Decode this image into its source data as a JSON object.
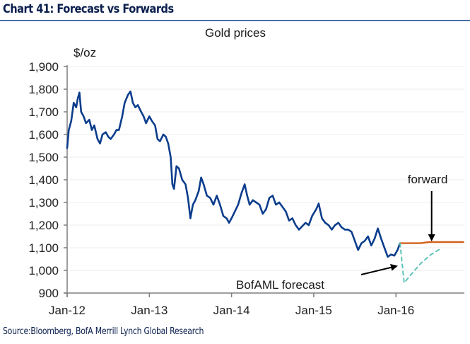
{
  "header": {
    "title": "Chart 41: Forecast vs Forwards"
  },
  "footer": {
    "source": "Source:Bloomberg, BofA Merrill Lynch Global Research"
  },
  "colors": {
    "gold_series": "#0b3d8c",
    "forward_series": "#d2601a",
    "forecast_series": "#5fc4b8",
    "axis": "#7f7f7f",
    "grid": "#ececec",
    "title": "#0a1f4e",
    "rule": "#4a6fa5"
  },
  "chart_data": {
    "type": "line",
    "title": "Gold prices",
    "ylabel": "$/oz",
    "xlabel": "",
    "ylim": [
      900,
      1900
    ],
    "xlim": [
      2012.0,
      2016.85
    ],
    "grid": true,
    "yticks": [
      900,
      1000,
      1100,
      1200,
      1300,
      1400,
      1500,
      1600,
      1700,
      1800,
      1900
    ],
    "ytick_labels": [
      "900",
      "1,000",
      "1,100",
      "1,200",
      "1,300",
      "1,400",
      "1,500",
      "1,600",
      "1,700",
      "1,800",
      "1,900"
    ],
    "xticks": [
      2012,
      2013,
      2014,
      2015,
      2016
    ],
    "xtick_labels": [
      "Jan-12",
      "Jan-13",
      "Jan-14",
      "Jan-15",
      "Jan-16"
    ],
    "series": [
      {
        "name": "Gold price",
        "style": "solid",
        "x": [
          2012.0,
          2012.02,
          2012.05,
          2012.08,
          2012.11,
          2012.13,
          2012.15,
          2012.17,
          2012.2,
          2012.23,
          2012.27,
          2012.3,
          2012.33,
          2012.37,
          2012.4,
          2012.43,
          2012.47,
          2012.5,
          2012.53,
          2012.57,
          2012.6,
          2012.63,
          2012.67,
          2012.7,
          2012.74,
          2012.77,
          2012.8,
          2012.83,
          2012.86,
          2012.9,
          2012.93,
          2012.96,
          2013.0,
          2013.03,
          2013.07,
          2013.1,
          2013.13,
          2013.17,
          2013.2,
          2013.23,
          2013.26,
          2013.28,
          2013.3,
          2013.33,
          2013.36,
          2013.4,
          2013.44,
          2013.47,
          2013.5,
          2013.53,
          2013.56,
          2013.6,
          2013.63,
          2013.66,
          2013.7,
          2013.74,
          2013.78,
          2013.82,
          2013.86,
          2013.9,
          2013.94,
          2013.97,
          2014.0,
          2014.04,
          2014.08,
          2014.12,
          2014.16,
          2014.19,
          2014.22,
          2014.26,
          2014.3,
          2014.34,
          2014.38,
          2014.42,
          2014.46,
          2014.5,
          2014.54,
          2014.58,
          2014.62,
          2014.66,
          2014.7,
          2014.74,
          2014.78,
          2014.82,
          2014.86,
          2014.9,
          2014.94,
          2014.98,
          2015.03,
          2015.06,
          2015.1,
          2015.14,
          2015.18,
          2015.22,
          2015.26,
          2015.3,
          2015.34,
          2015.38,
          2015.42,
          2015.46,
          2015.5,
          2015.54,
          2015.58,
          2015.62,
          2015.66,
          2015.7,
          2015.74,
          2015.78,
          2015.82,
          2015.86,
          2015.9,
          2015.94,
          2015.98,
          2016.02,
          2016.05
        ],
        "y": [
          1540,
          1620,
          1660,
          1740,
          1720,
          1760,
          1785,
          1700,
          1680,
          1650,
          1665,
          1620,
          1640,
          1580,
          1560,
          1600,
          1610,
          1590,
          1580,
          1600,
          1620,
          1620,
          1680,
          1740,
          1775,
          1790,
          1740,
          1720,
          1730,
          1700,
          1680,
          1650,
          1680,
          1660,
          1640,
          1580,
          1570,
          1600,
          1590,
          1560,
          1500,
          1380,
          1360,
          1460,
          1450,
          1400,
          1380,
          1320,
          1230,
          1290,
          1310,
          1350,
          1410,
          1380,
          1330,
          1320,
          1290,
          1330,
          1290,
          1240,
          1230,
          1210,
          1230,
          1260,
          1290,
          1340,
          1380,
          1330,
          1290,
          1310,
          1300,
          1290,
          1250,
          1270,
          1320,
          1330,
          1290,
          1300,
          1280,
          1260,
          1220,
          1230,
          1200,
          1180,
          1195,
          1210,
          1200,
          1240,
          1270,
          1295,
          1230,
          1210,
          1200,
          1180,
          1200,
          1210,
          1190,
          1180,
          1180,
          1170,
          1130,
          1090,
          1120,
          1130,
          1150,
          1110,
          1140,
          1185,
          1140,
          1100,
          1060,
          1070,
          1065,
          1090,
          1120
        ]
      },
      {
        "name": "forward",
        "style": "solid",
        "x": [
          2016.05,
          2016.3,
          2016.4,
          2016.82
        ],
        "y": [
          1120,
          1120,
          1125,
          1125
        ]
      },
      {
        "name": "BofAML forecast",
        "style": "dashed",
        "x": [
          2016.05,
          2016.1,
          2016.18,
          2016.3,
          2016.42,
          2016.54
        ],
        "y": [
          1120,
          945,
          980,
          1030,
          1068,
          1095
        ]
      }
    ],
    "annotations": [
      {
        "text": "forward",
        "arrow_to": [
          2016.4,
          1125
        ]
      },
      {
        "text": "BofAML forecast",
        "arrow_to": [
          2016.05,
          1000
        ]
      }
    ]
  }
}
